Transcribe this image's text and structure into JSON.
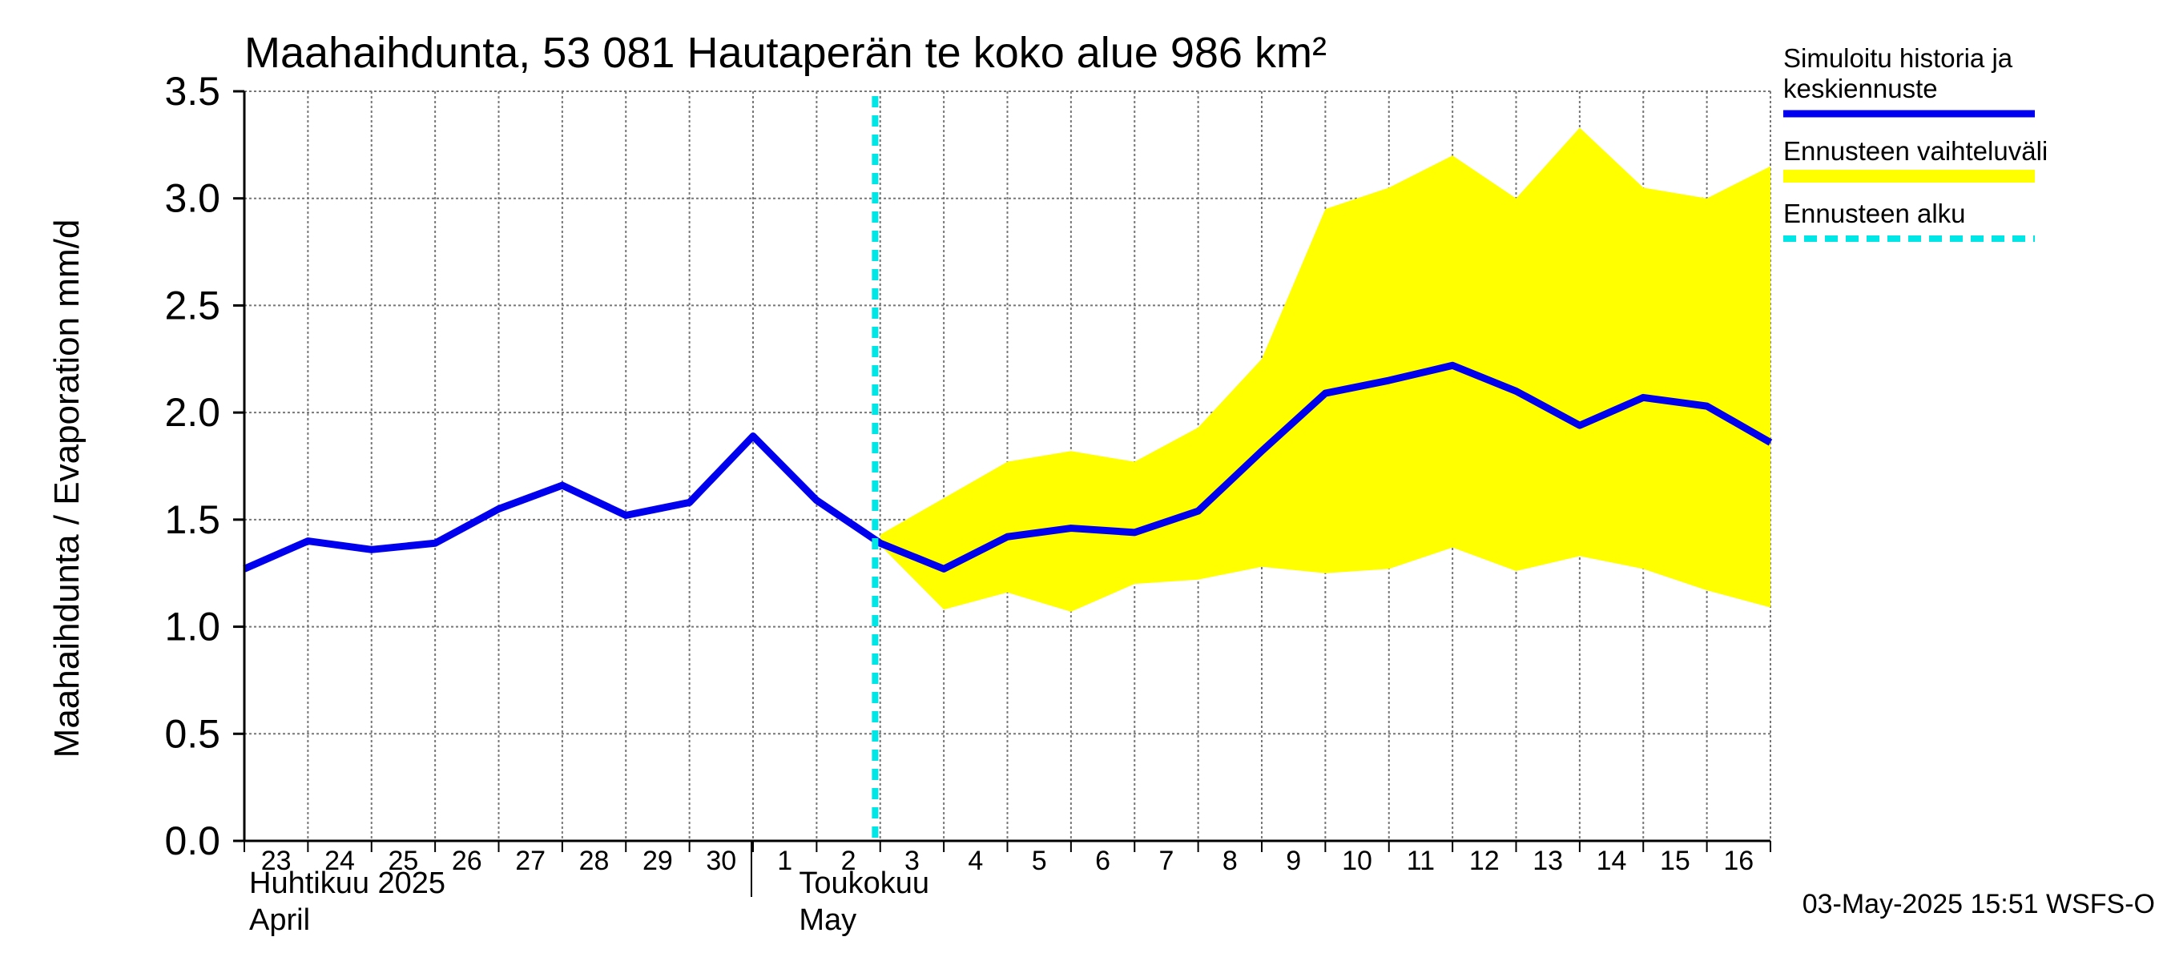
{
  "chart_data": {
    "type": "line",
    "title": "Maahaihdunta, 53 081 Hautaperän te koko alue 986 km²",
    "ylabel": "Maahaihdunta / Evaporation   mm/d",
    "ylim": [
      0,
      3.5
    ],
    "yticks": [
      "0.0",
      "0.5",
      "1.0",
      "1.5",
      "2.0",
      "2.5",
      "3.0",
      "3.5"
    ],
    "x_day_labels": [
      "23",
      "24",
      "25",
      "26",
      "27",
      "28",
      "29",
      "30",
      "1",
      "2",
      "3",
      "4",
      "5",
      "6",
      "7",
      "8",
      "9",
      "10",
      "11",
      "12",
      "13",
      "14",
      "15",
      "16"
    ],
    "month_labels": [
      {
        "line1": "Huhtikuu  2025",
        "line2": "April"
      },
      {
        "line1": "Toukokuu",
        "line2": "May"
      }
    ],
    "x_dates": [
      "2025-04-23",
      "2025-04-24",
      "2025-04-25",
      "2025-04-26",
      "2025-04-27",
      "2025-04-28",
      "2025-04-29",
      "2025-04-30",
      "2025-05-01",
      "2025-05-02",
      "2025-05-03",
      "2025-05-04",
      "2025-05-05",
      "2025-05-06",
      "2025-05-07",
      "2025-05-08",
      "2025-05-09",
      "2025-05-10",
      "2025-05-11",
      "2025-05-12",
      "2025-05-13",
      "2025-05-14",
      "2025-05-15",
      "2025-05-16",
      "2025-05-17"
    ],
    "series": [
      {
        "name": "Simuloitu historia ja keskiennuste",
        "color": "#0000ee",
        "values": [
          1.27,
          1.4,
          1.36,
          1.39,
          1.55,
          1.66,
          1.52,
          1.58,
          1.89,
          1.59,
          1.39,
          1.27,
          1.42,
          1.46,
          1.44,
          1.54,
          1.82,
          2.09,
          2.15,
          2.22,
          2.1,
          1.94,
          2.07,
          2.03,
          1.86
        ]
      }
    ],
    "range": {
      "name": "Ennusteen vaihteluväli",
      "color": "#ffff00",
      "x_start_index": 10,
      "upper": [
        1.43,
        1.6,
        1.77,
        1.82,
        1.77,
        1.93,
        2.25,
        2.95,
        3.05,
        3.2,
        3.0,
        3.33,
        3.05,
        3.0,
        3.15
      ],
      "lower": [
        1.38,
        1.08,
        1.16,
        1.07,
        1.2,
        1.22,
        1.28,
        1.25,
        1.27,
        1.37,
        1.26,
        1.33,
        1.27,
        1.17,
        1.09
      ]
    },
    "forecast_start": {
      "name": "Ennusteen alku",
      "color": "#00e5e5",
      "x_date": "2025-05-03"
    },
    "legend": {
      "placement": "top-right",
      "entries": [
        {
          "lines": [
            "Simuloitu historia ja",
            "keskiennuste"
          ],
          "color": "#0000ee",
          "style": "solid"
        },
        {
          "lines": [
            "Ennusteen vaihteluväli"
          ],
          "color": "#ffff00",
          "style": "band"
        },
        {
          "lines": [
            "Ennusteen alku"
          ],
          "color": "#00e5e5",
          "style": "dashed"
        }
      ]
    },
    "grid": true,
    "timestamp": "03-May-2025 15:51 WSFS-O"
  }
}
